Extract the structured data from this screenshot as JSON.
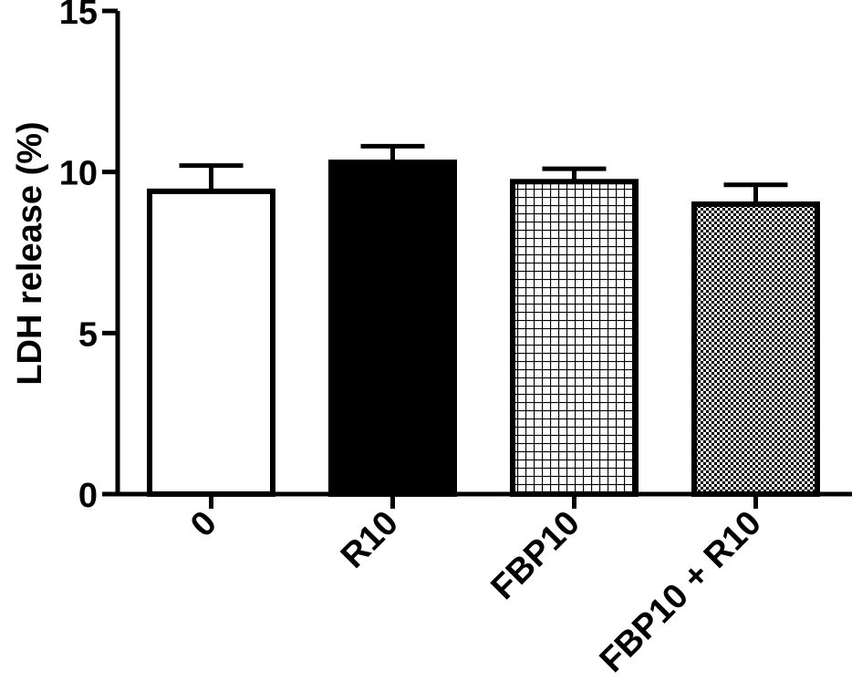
{
  "chart_data": {
    "type": "bar",
    "title": "",
    "xlabel": "",
    "ylabel": "LDH release (%)",
    "ylim": [
      0,
      15
    ],
    "yticks": [
      0,
      5,
      10,
      15
    ],
    "grid": false,
    "categories": [
      "0",
      "R10",
      "FBP10",
      "FBP10 + R10"
    ],
    "values": [
      9.4,
      10.3,
      9.7,
      9.0
    ],
    "errors": [
      0.8,
      0.5,
      0.4,
      0.6
    ],
    "fills": [
      "white",
      "black",
      "grid",
      "checker"
    ]
  }
}
